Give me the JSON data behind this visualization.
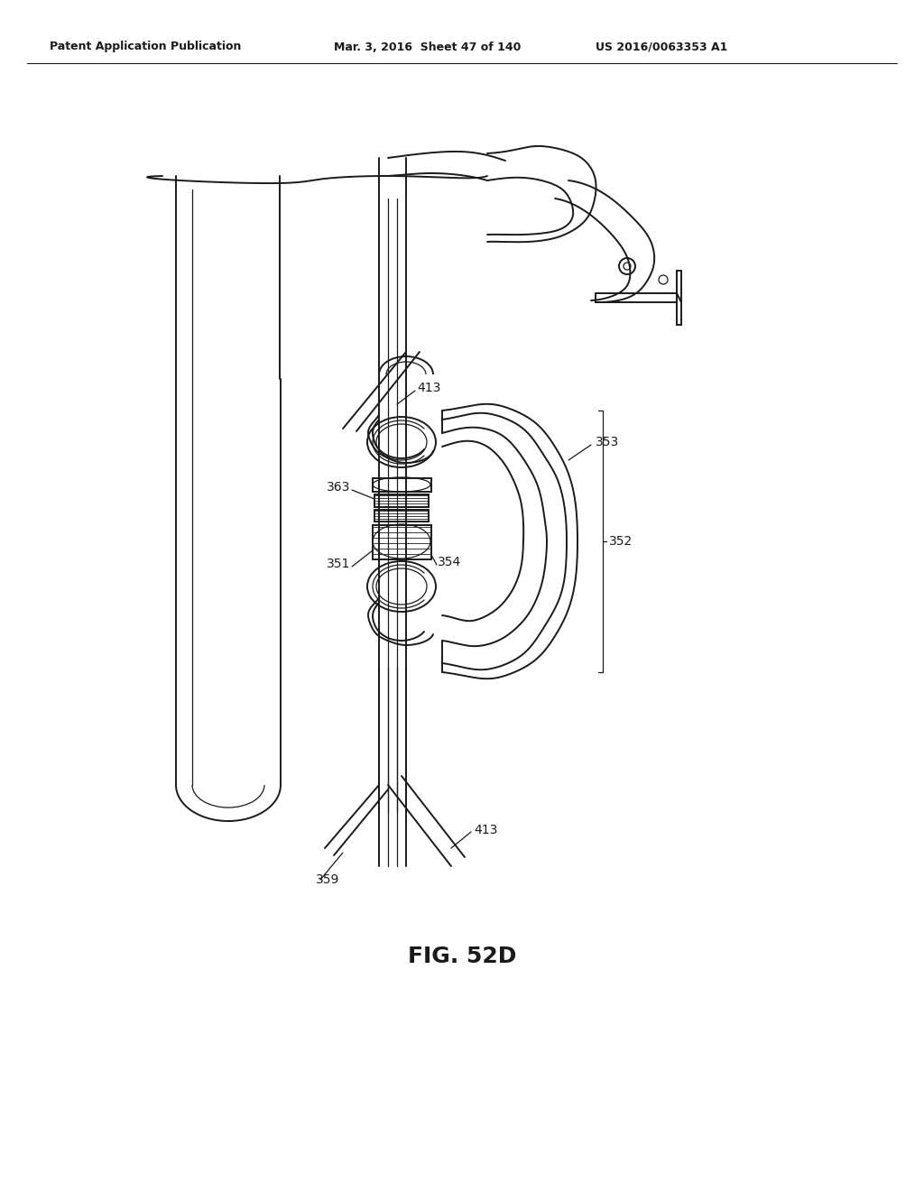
{
  "background_color": "#ffffff",
  "header_left": "Patent Application Publication",
  "header_center": "Mar. 3, 2016  Sheet 47 of 140",
  "header_right": "US 2016/0063353 A1",
  "figure_label": "FIG. 52D",
  "line_color": "#1a1a1a",
  "text_color": "#1a1a1a",
  "lw_main": 1.4,
  "lw_thin": 0.9,
  "lw_thick": 2.0
}
